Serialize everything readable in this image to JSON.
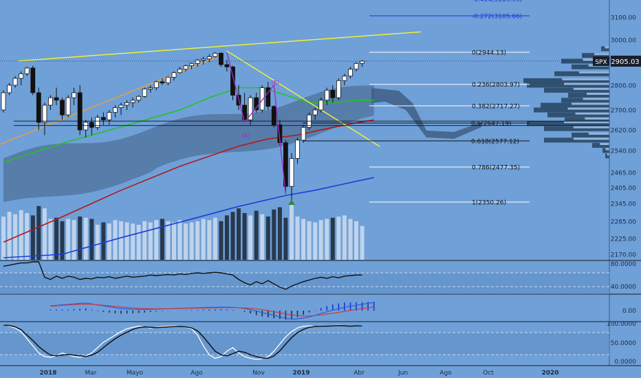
{
  "chart_data": [
    {
      "panel": "price",
      "type": "candlestick",
      "symbol": "SPX",
      "last_price": "2905.03",
      "bar_interval": "weekly",
      "x_labels": [
        "2018",
        "Mar",
        "Mayo",
        "Ago",
        "Nov",
        "2019",
        "Abr",
        "Jun",
        "Ago",
        "Oct",
        "2020"
      ],
      "y_ticks": [
        "3100.00",
        "3000.00",
        "2905.03",
        "2800.00",
        "2700.00",
        "2620.00",
        "2540.00",
        "2465.00",
        "2405.00",
        "2345.00",
        "2285.00",
        "2225.00",
        "2170.00"
      ],
      "ylim": [
        2160,
        3190
      ],
      "fib_levels": [
        {
          "label": "-0.272(3105.66)",
          "value": 3105.66,
          "color": "#1538d6"
        },
        {
          "label": "0(2944.13)",
          "value": 2944.13,
          "color": "#ffffff"
        },
        {
          "label": "0.236(2803.97)",
          "value": 2803.97,
          "color": "#ffffff"
        },
        {
          "label": "0.382(2717.27)",
          "value": 2717.27,
          "color": "#ffffff"
        },
        {
          "label": "0.5(2647.19)",
          "value": 2647.19,
          "color": "#111111"
        },
        {
          "label": "0.618(2577.12)",
          "value": 2577.12,
          "color": "#111111"
        },
        {
          "label": "0.786(2477.35)",
          "value": 2477.35,
          "color": "#ffffff"
        },
        {
          "label": "1(2350.26)",
          "value": 2350.26,
          "color": "#ffffff"
        }
      ],
      "fib_partial_label": "-0.414(3189.99)",
      "wave_labels": [
        "(A)",
        "(B)"
      ],
      "candles": [
        [
          2700,
          2780,
          2690,
          2770
        ],
        [
          2770,
          2810,
          2760,
          2800
        ],
        [
          2800,
          2840,
          2790,
          2830
        ],
        [
          2830,
          2860,
          2800,
          2850
        ],
        [
          2850,
          2880,
          2840,
          2875
        ],
        [
          2875,
          2885,
          2760,
          2770
        ],
        [
          2770,
          2790,
          2620,
          2650
        ],
        [
          2650,
          2730,
          2600,
          2720
        ],
        [
          2720,
          2760,
          2700,
          2750
        ],
        [
          2750,
          2790,
          2720,
          2740
        ],
        [
          2740,
          2750,
          2660,
          2680
        ],
        [
          2680,
          2760,
          2670,
          2750
        ],
        [
          2750,
          2790,
          2720,
          2770
        ],
        [
          2770,
          2800,
          2600,
          2620
        ],
        [
          2620,
          2660,
          2590,
          2650
        ],
        [
          2650,
          2670,
          2600,
          2630
        ],
        [
          2630,
          2680,
          2620,
          2670
        ],
        [
          2670,
          2690,
          2640,
          2660
        ],
        [
          2660,
          2700,
          2640,
          2690
        ],
        [
          2690,
          2720,
          2670,
          2710
        ],
        [
          2710,
          2730,
          2680,
          2720
        ],
        [
          2720,
          2740,
          2700,
          2730
        ],
        [
          2730,
          2750,
          2710,
          2740
        ],
        [
          2740,
          2760,
          2730,
          2755
        ],
        [
          2755,
          2790,
          2750,
          2785
        ],
        [
          2785,
          2800,
          2770,
          2790
        ],
        [
          2790,
          2820,
          2780,
          2815
        ],
        [
          2815,
          2830,
          2800,
          2810
        ],
        [
          2810,
          2840,
          2800,
          2835
        ],
        [
          2835,
          2860,
          2820,
          2855
        ],
        [
          2855,
          2880,
          2850,
          2870
        ],
        [
          2870,
          2890,
          2860,
          2885
        ],
        [
          2885,
          2900,
          2870,
          2895
        ],
        [
          2895,
          2915,
          2880,
          2910
        ],
        [
          2910,
          2925,
          2890,
          2915
        ],
        [
          2915,
          2935,
          2900,
          2925
        ],
        [
          2925,
          2945,
          2920,
          2940
        ],
        [
          2940,
          2944,
          2880,
          2890
        ],
        [
          2890,
          2910,
          2860,
          2880
        ],
        [
          2880,
          2885,
          2740,
          2760
        ],
        [
          2760,
          2800,
          2700,
          2720
        ],
        [
          2720,
          2770,
          2650,
          2660
        ],
        [
          2660,
          2760,
          2640,
          2750
        ],
        [
          2750,
          2770,
          2690,
          2700
        ],
        [
          2700,
          2800,
          2690,
          2790
        ],
        [
          2790,
          2815,
          2700,
          2715
        ],
        [
          2715,
          2720,
          2630,
          2640
        ],
        [
          2640,
          2660,
          2560,
          2570
        ],
        [
          2570,
          2580,
          2380,
          2410
        ],
        [
          2410,
          2530,
          2350,
          2510
        ],
        [
          2510,
          2590,
          2490,
          2580
        ],
        [
          2580,
          2640,
          2570,
          2630
        ],
        [
          2630,
          2690,
          2620,
          2680
        ],
        [
          2680,
          2710,
          2660,
          2700
        ],
        [
          2700,
          2750,
          2690,
          2740
        ],
        [
          2740,
          2790,
          2720,
          2780
        ],
        [
          2780,
          2800,
          2730,
          2750
        ],
        [
          2750,
          2830,
          2740,
          2820
        ],
        [
          2820,
          2850,
          2800,
          2840
        ],
        [
          2840,
          2880,
          2830,
          2870
        ],
        [
          2870,
          2900,
          2860,
          2895
        ],
        [
          2895,
          2910,
          2880,
          2905
        ]
      ],
      "moving_averages": [
        {
          "color": "#22c22a",
          "name": "",
          "values": [
            [
              0,
              2495
            ],
            [
              10,
              2568
            ],
            [
              20,
              2632
            ],
            [
              30,
              2700
            ],
            [
              35,
              2750
            ],
            [
              40,
              2790
            ],
            [
              44,
              2790
            ],
            [
              48,
              2760
            ],
            [
              52,
              2730
            ],
            [
              56,
              2730
            ],
            [
              60,
              2740
            ],
            [
              63,
              2740
            ]
          ]
        },
        {
          "color": "#b71515",
          "name": "",
          "values": [
            [
              0,
              2212
            ],
            [
              10,
              2300
            ],
            [
              20,
              2395
            ],
            [
              30,
              2480
            ],
            [
              40,
              2557
            ],
            [
              45,
              2585
            ],
            [
              50,
              2600
            ],
            [
              55,
              2625
            ],
            [
              60,
              2648
            ],
            [
              63,
              2660
            ]
          ]
        },
        {
          "color": "#1a3ed8",
          "name": "",
          "values": [
            [
              0,
              2115
            ],
            [
              10,
              2170
            ],
            [
              20,
              2228
            ],
            [
              30,
              2282
            ],
            [
              40,
              2335
            ],
            [
              48,
              2375
            ],
            [
              53,
              2395
            ],
            [
              58,
              2420
            ],
            [
              63,
              2445
            ]
          ]
        }
      ],
      "trendlines": [
        {
          "color": "#f0f03a",
          "name": "",
          "points": [
            [
              2.5,
              2906
            ],
            [
              71,
              3035
            ]
          ]
        },
        {
          "color": "#f0f03a",
          "name": "",
          "points": [
            [
              38,
              2950
            ],
            [
              64,
              2555
            ]
          ]
        },
        {
          "color": "#e8a040",
          "name": "",
          "points": [
            [
              -1,
              2560
            ],
            [
              37,
              2930
            ]
          ]
        }
      ]
    },
    {
      "panel": "volume",
      "type": "bar",
      "values": [
        74,
        82,
        78,
        85,
        80,
        76,
        92,
        88,
        70,
        72,
        66,
        70,
        68,
        74,
        72,
        70,
        60,
        64,
        62,
        68,
        66,
        64,
        62,
        60,
        66,
        64,
        68,
        70,
        66,
        64,
        68,
        62,
        64,
        66,
        70,
        68,
        72,
        66,
        76,
        82,
        88,
        80,
        76,
        84,
        78,
        74,
        86,
        90,
        72,
        96,
        74,
        70,
        66,
        64,
        68,
        70,
        72,
        74,
        76,
        70,
        66,
        58
      ]
    },
    {
      "panel": "rsi",
      "type": "line",
      "y_ticks": [
        "80.0000",
        "40.0000"
      ],
      "ylim": [
        30,
        90
      ],
      "values": [
        82,
        84,
        86,
        88,
        88,
        90,
        90,
        62,
        58,
        64,
        60,
        64,
        62,
        58,
        60,
        59,
        62,
        61,
        63,
        60,
        62,
        64,
        62,
        63,
        64,
        66,
        65,
        66,
        67,
        66,
        68,
        67,
        69,
        70,
        69,
        70,
        71,
        70,
        68,
        66,
        58,
        52,
        48,
        54,
        50,
        56,
        50,
        44,
        40,
        46,
        50,
        54,
        57,
        60,
        62,
        60,
        63,
        61,
        64,
        65,
        66,
        66
      ]
    },
    {
      "panel": "macd",
      "type": "line",
      "y_ticks": [
        "0.00"
      ],
      "ylim": [
        -1.2,
        1.3
      ],
      "macd": [
        0.5,
        0.55,
        0.6,
        0.65,
        0.7,
        0.75,
        0.8,
        0.7,
        0.6,
        0.5,
        0.4,
        0.3,
        0.22,
        0.18,
        0.14,
        0.12,
        0.12,
        0.14,
        0.16,
        0.18,
        0.2,
        0.22,
        0.24,
        0.26,
        0.28,
        0.3,
        0.32,
        0.34,
        0.35,
        0.36,
        0.36,
        0.34,
        0.3,
        0.22,
        0.1,
        -0.05,
        -0.2,
        -0.35,
        -0.5,
        -0.65,
        -0.8,
        -0.88,
        -0.86,
        -0.78,
        -0.64,
        -0.48,
        -0.3,
        -0.12,
        0.05,
        0.2,
        0.34,
        0.46,
        0.56,
        0.66,
        0.76,
        0.86
      ],
      "signal": [
        0.45,
        0.5,
        0.55,
        0.6,
        0.62,
        0.65,
        0.67,
        0.66,
        0.62,
        0.56,
        0.5,
        0.44,
        0.38,
        0.33,
        0.28,
        0.24,
        0.22,
        0.2,
        0.2,
        0.2,
        0.21,
        0.22,
        0.23,
        0.24,
        0.25,
        0.26,
        0.27,
        0.28,
        0.29,
        0.3,
        0.31,
        0.31,
        0.3,
        0.28,
        0.24,
        0.18,
        0.1,
        0.0,
        -0.1,
        -0.22,
        -0.34,
        -0.45,
        -0.52,
        -0.56,
        -0.55,
        -0.5,
        -0.44,
        -0.36,
        -0.27,
        -0.18,
        -0.08,
        0.02,
        0.12,
        0.22,
        0.3,
        0.4
      ],
      "histogram": [
        0.05,
        0.05,
        0.05,
        0.05,
        0.08,
        0.1,
        0.13,
        0.04,
        -0.02,
        -0.06,
        -0.1,
        -0.14,
        -0.16,
        -0.15,
        -0.14,
        -0.12,
        -0.1,
        -0.06,
        -0.04,
        -0.02,
        -0.01,
        0.0,
        0.01,
        0.02,
        0.03,
        0.04,
        0.05,
        0.06,
        0.06,
        0.06,
        0.05,
        0.03,
        0.0,
        -0.06,
        -0.14,
        -0.23,
        -0.3,
        -0.35,
        -0.4,
        -0.43,
        -0.46,
        -0.43,
        -0.34,
        -0.22,
        -0.09,
        0.02,
        0.14,
        0.24,
        0.32,
        0.38,
        0.42,
        0.44,
        0.44,
        0.44,
        0.46,
        0.46
      ]
    },
    {
      "panel": "stochastic",
      "type": "line",
      "y_ticks": [
        "100.0000",
        "50.0000",
        "0.0000"
      ],
      "ylim": [
        0,
        100
      ],
      "k": [
        100,
        95,
        90,
        80,
        60,
        40,
        20,
        10,
        8,
        12,
        20,
        15,
        10,
        8,
        12,
        20,
        35,
        50,
        60,
        70,
        80,
        88,
        92,
        95,
        93,
        90,
        92,
        94,
        95,
        96,
        94,
        92,
        88,
        70,
        40,
        15,
        5,
        10,
        25,
        35,
        20,
        10,
        5,
        2,
        4,
        10,
        25,
        45,
        65,
        80,
        90,
        95,
        96,
        94,
        96,
        95,
        97,
        98,
        96,
        95,
        96,
        97
      ],
      "d": [
        98,
        97,
        93,
        85,
        70,
        55,
        38,
        25,
        14,
        12,
        14,
        16,
        14,
        12,
        10,
        14,
        22,
        35,
        48,
        60,
        70,
        78,
        86,
        91,
        93,
        92,
        91,
        92,
        93,
        94,
        94,
        93,
        90,
        82,
        65,
        45,
        25,
        15,
        12,
        18,
        25,
        22,
        15,
        10,
        6,
        5,
        12,
        26,
        45,
        63,
        77,
        86,
        92,
        94,
        95,
        95,
        96,
        97,
        96,
        95,
        96,
        96
      ]
    }
  ]
}
